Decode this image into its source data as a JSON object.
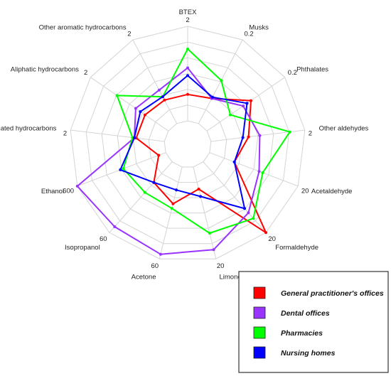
{
  "chart_data": {
    "type": "radar",
    "axes": [
      {
        "label": "BTEX",
        "max_label": "2"
      },
      {
        "label": "Musks",
        "max_label": "0.2"
      },
      {
        "label": "Phthalates",
        "max_label": "0.2"
      },
      {
        "label": "Other aldehydes",
        "max_label": "2"
      },
      {
        "label": "Acetaldehyde",
        "max_label": "20"
      },
      {
        "label": "Formaldehyde",
        "max_label": "20"
      },
      {
        "label": "Limonene",
        "max_label": "20"
      },
      {
        "label": "Acetone",
        "max_label": "60"
      },
      {
        "label": "Isopropanol",
        "max_label": "60"
      },
      {
        "label": "Ethanol",
        "max_label": "600"
      },
      {
        "label": "Halogenated hydrocarbons",
        "max_label": "2"
      },
      {
        "label": "Aliphatic hydrocarbons",
        "max_label": "2"
      },
      {
        "label": "Other aromatic hydrocarbons",
        "max_label": "2"
      }
    ],
    "max": [
      2,
      0.2,
      0.2,
      2,
      20,
      20,
      20,
      60,
      60,
      600,
      2,
      2,
      2
    ],
    "ring_count": 7,
    "inner_ring_fraction": 0.2,
    "series": [
      {
        "name": "General practitioner's offices",
        "color": "#ff0000",
        "values": [
          0.56,
          0.06,
          0.113,
          0.8,
          5.6,
          20,
          4.8,
          24,
          17.5,
          48,
          0.6,
          0.6,
          0.56
        ]
      },
      {
        "name": "Dental offices",
        "color": "#9933ff",
        "values": [
          1.12,
          0.06,
          0.093,
          1.04,
          11.2,
          14.4,
          18,
          57,
          55,
          600,
          0.64,
          0.84,
          0.8
        ]
      },
      {
        "name": "Pharmacies",
        "color": "#00ff00",
        "values": [
          1.52,
          0.103,
          0.06,
          1.68,
          12,
          16,
          14.4,
          27,
          26,
          288,
          0.68,
          1.32,
          0.64
        ]
      },
      {
        "name": "Nursing homes",
        "color": "#0000ff",
        "values": [
          0.96,
          0.063,
          0.103,
          0.68,
          5.6,
          13.2,
          6.4,
          15,
          17.5,
          308,
          0.64,
          0.72,
          0.64
        ]
      }
    ],
    "legend_position": "bottom-right"
  }
}
